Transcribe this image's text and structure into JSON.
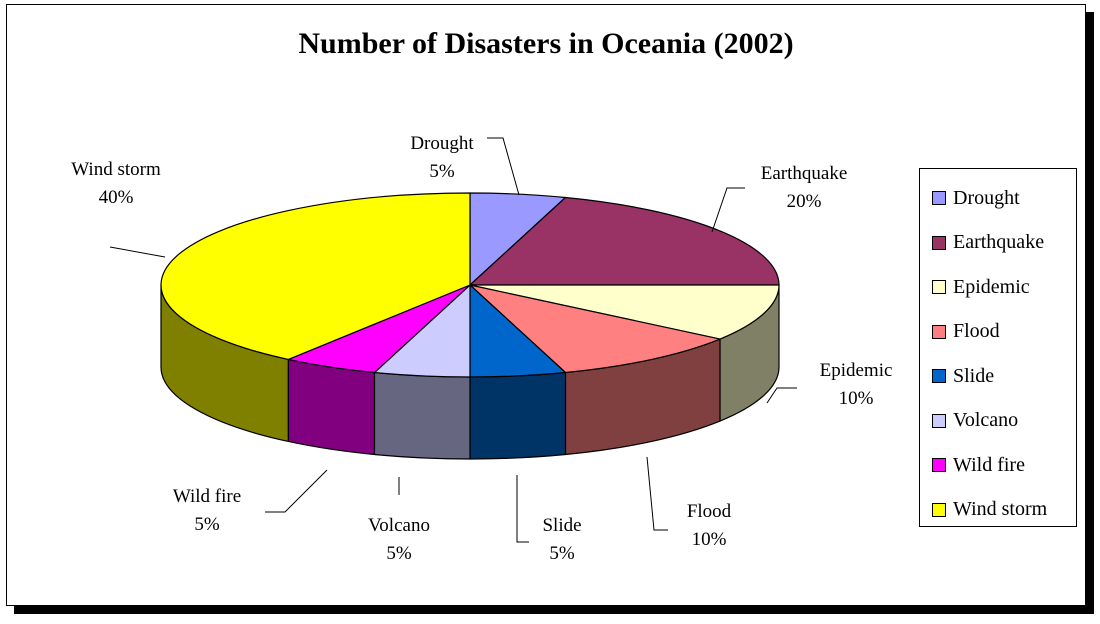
{
  "chart_data": {
    "type": "pie",
    "title": "Number of Disasters in Oceania (2002)",
    "categories": [
      "Drought",
      "Earthquake",
      "Epidemic",
      "Flood",
      "Slide",
      "Volcano",
      "Wild fire",
      "Wind storm"
    ],
    "values": [
      5,
      20,
      10,
      10,
      5,
      5,
      5,
      40
    ],
    "labels": [
      "5%",
      "20%",
      "10%",
      "10%",
      "5%",
      "5%",
      "5%",
      "40%"
    ],
    "colors": [
      "#9999FF",
      "#993366",
      "#FFFFCC",
      "#FF8080",
      "#0066CC",
      "#CCCCFF",
      "#FF00FF",
      "#FFFF00"
    ],
    "side_colors": [
      "#4C4C80",
      "#4C1A33",
      "#808066",
      "#804040",
      "#003366",
      "#666680",
      "#800080",
      "#808000"
    ],
    "legend_position": "right",
    "three_d": true
  }
}
